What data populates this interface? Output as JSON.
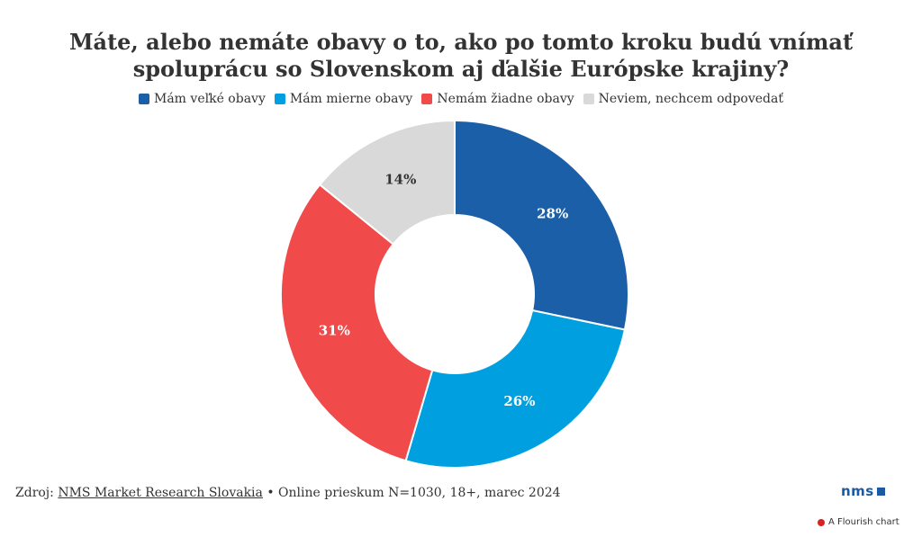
{
  "chart_data": {
    "type": "pie",
    "title": "Máte, alebo nemáte obavy o to, ako po tomto kroku budú vnímať spoluprácu so Slovenskom aj ďalšie Európske krajiny?",
    "categories": [
      "Mám veľké obavy",
      "Mám mierne obavy",
      "Nemám žiadne obavy",
      "Neviem, nechcem odpovedať"
    ],
    "values": [
      28,
      26,
      31,
      14
    ],
    "value_labels": [
      "28%",
      "26%",
      "31%",
      "14%"
    ],
    "colors": [
      "#1b5fa8",
      "#00a0e0",
      "#f04a4a",
      "#d9d9d9"
    ],
    "label_colors": [
      "#ffffff",
      "#ffffff",
      "#ffffff",
      "#333333"
    ],
    "donut": true,
    "legend_position": "top"
  },
  "legend": {
    "items": [
      {
        "label": "Mám veľké obavy",
        "color": "#1b5fa8"
      },
      {
        "label": "Mám mierne obavy",
        "color": "#00a0e0"
      },
      {
        "label": "Nemám žiadne obavy",
        "color": "#f04a4a"
      },
      {
        "label": "Neviem, nechcem odpovedať",
        "color": "#d9d9d9"
      }
    ]
  },
  "footer": {
    "prefix": "Zdroj: ",
    "source": "NMS Market Research Slovakia",
    "suffix": " • Online prieskum N=1030, 18+, marec 2024"
  },
  "logo": {
    "text": "nms"
  },
  "credit": {
    "text": "A Flourish chart"
  }
}
